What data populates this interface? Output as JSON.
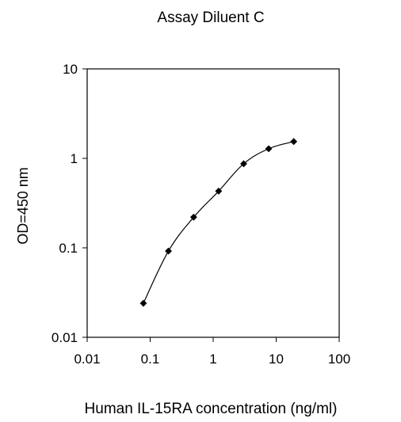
{
  "chart_data": {
    "type": "line",
    "title": "Assay Diluent C",
    "xlabel": "Human IL-15RA concentration (ng/ml)",
    "ylabel": "OD=450 nm",
    "x_scale": "log",
    "y_scale": "log",
    "xlim": [
      0.01,
      100
    ],
    "ylim": [
      0.01,
      10
    ],
    "x_ticks": [
      "0.01",
      "0.1",
      "1",
      "10",
      "100"
    ],
    "y_ticks": [
      "0.01",
      "0.1",
      "1",
      "10"
    ],
    "grid": false,
    "marker": "diamond",
    "colors": {
      "line": "#000000",
      "marker": "#000000",
      "axis": "#000000"
    },
    "series": [
      {
        "x": [
          0.078,
          0.195,
          0.49,
          1.22,
          3.05,
          7.6,
          19.0
        ],
        "y": [
          0.024,
          0.092,
          0.22,
          0.43,
          0.87,
          1.28,
          1.54
        ]
      }
    ]
  }
}
